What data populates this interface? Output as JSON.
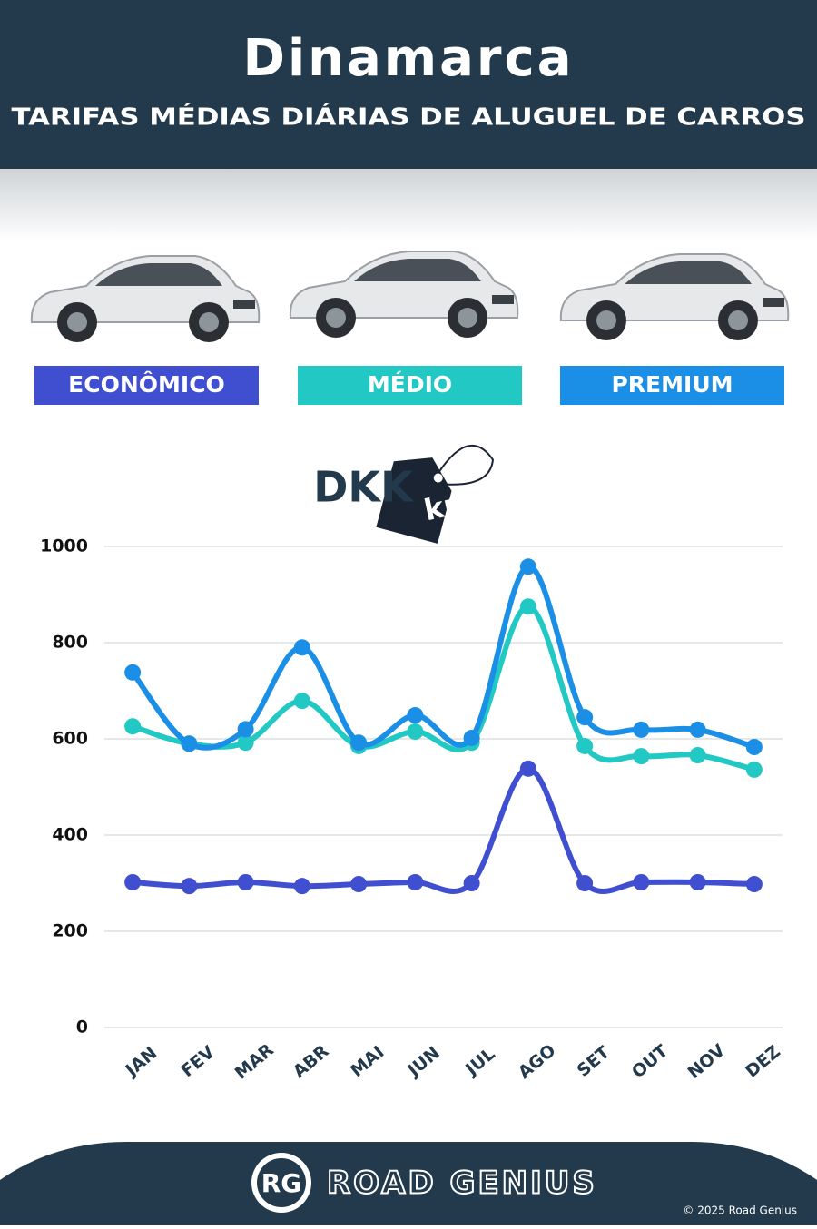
{
  "header": {
    "title": "Dinamarca",
    "subtitle": "TARIFAS MÉDIAS DIÁRIAS DE ALUGUEL DE CARROS"
  },
  "chart_data": {
    "type": "line",
    "unit_label": "DKK",
    "unit_tag": "kr.",
    "categories": [
      "JAN",
      "FEV",
      "MAR",
      "ABR",
      "MAI",
      "JUN",
      "JUL",
      "AGO",
      "SET",
      "OUT",
      "NOV",
      "DEZ"
    ],
    "series": [
      {
        "name": "ECONÔMICO",
        "color": "#3f4fd0",
        "values": [
          302,
          294,
          302,
          294,
          298,
          302,
          300,
          538,
          300,
          302,
          302,
          298
        ]
      },
      {
        "name": "MÉDIO",
        "color": "#22c9c4",
        "values": [
          626,
          590,
          592,
          679,
          585,
          615,
          592,
          875,
          585,
          564,
          566,
          536
        ]
      },
      {
        "name": "PREMIUM",
        "color": "#1b8fe6",
        "values": [
          738,
          590,
          620,
          790,
          592,
          649,
          602,
          958,
          645,
          619,
          619,
          583
        ]
      }
    ],
    "ylim": [
      0,
      1000
    ],
    "yticks": [
      0,
      200,
      400,
      600,
      800,
      1000
    ],
    "grid": true
  },
  "footer": {
    "logo": "RG",
    "brand": "ROAD GENIUS",
    "copyright": "© 2025 Road Genius"
  }
}
